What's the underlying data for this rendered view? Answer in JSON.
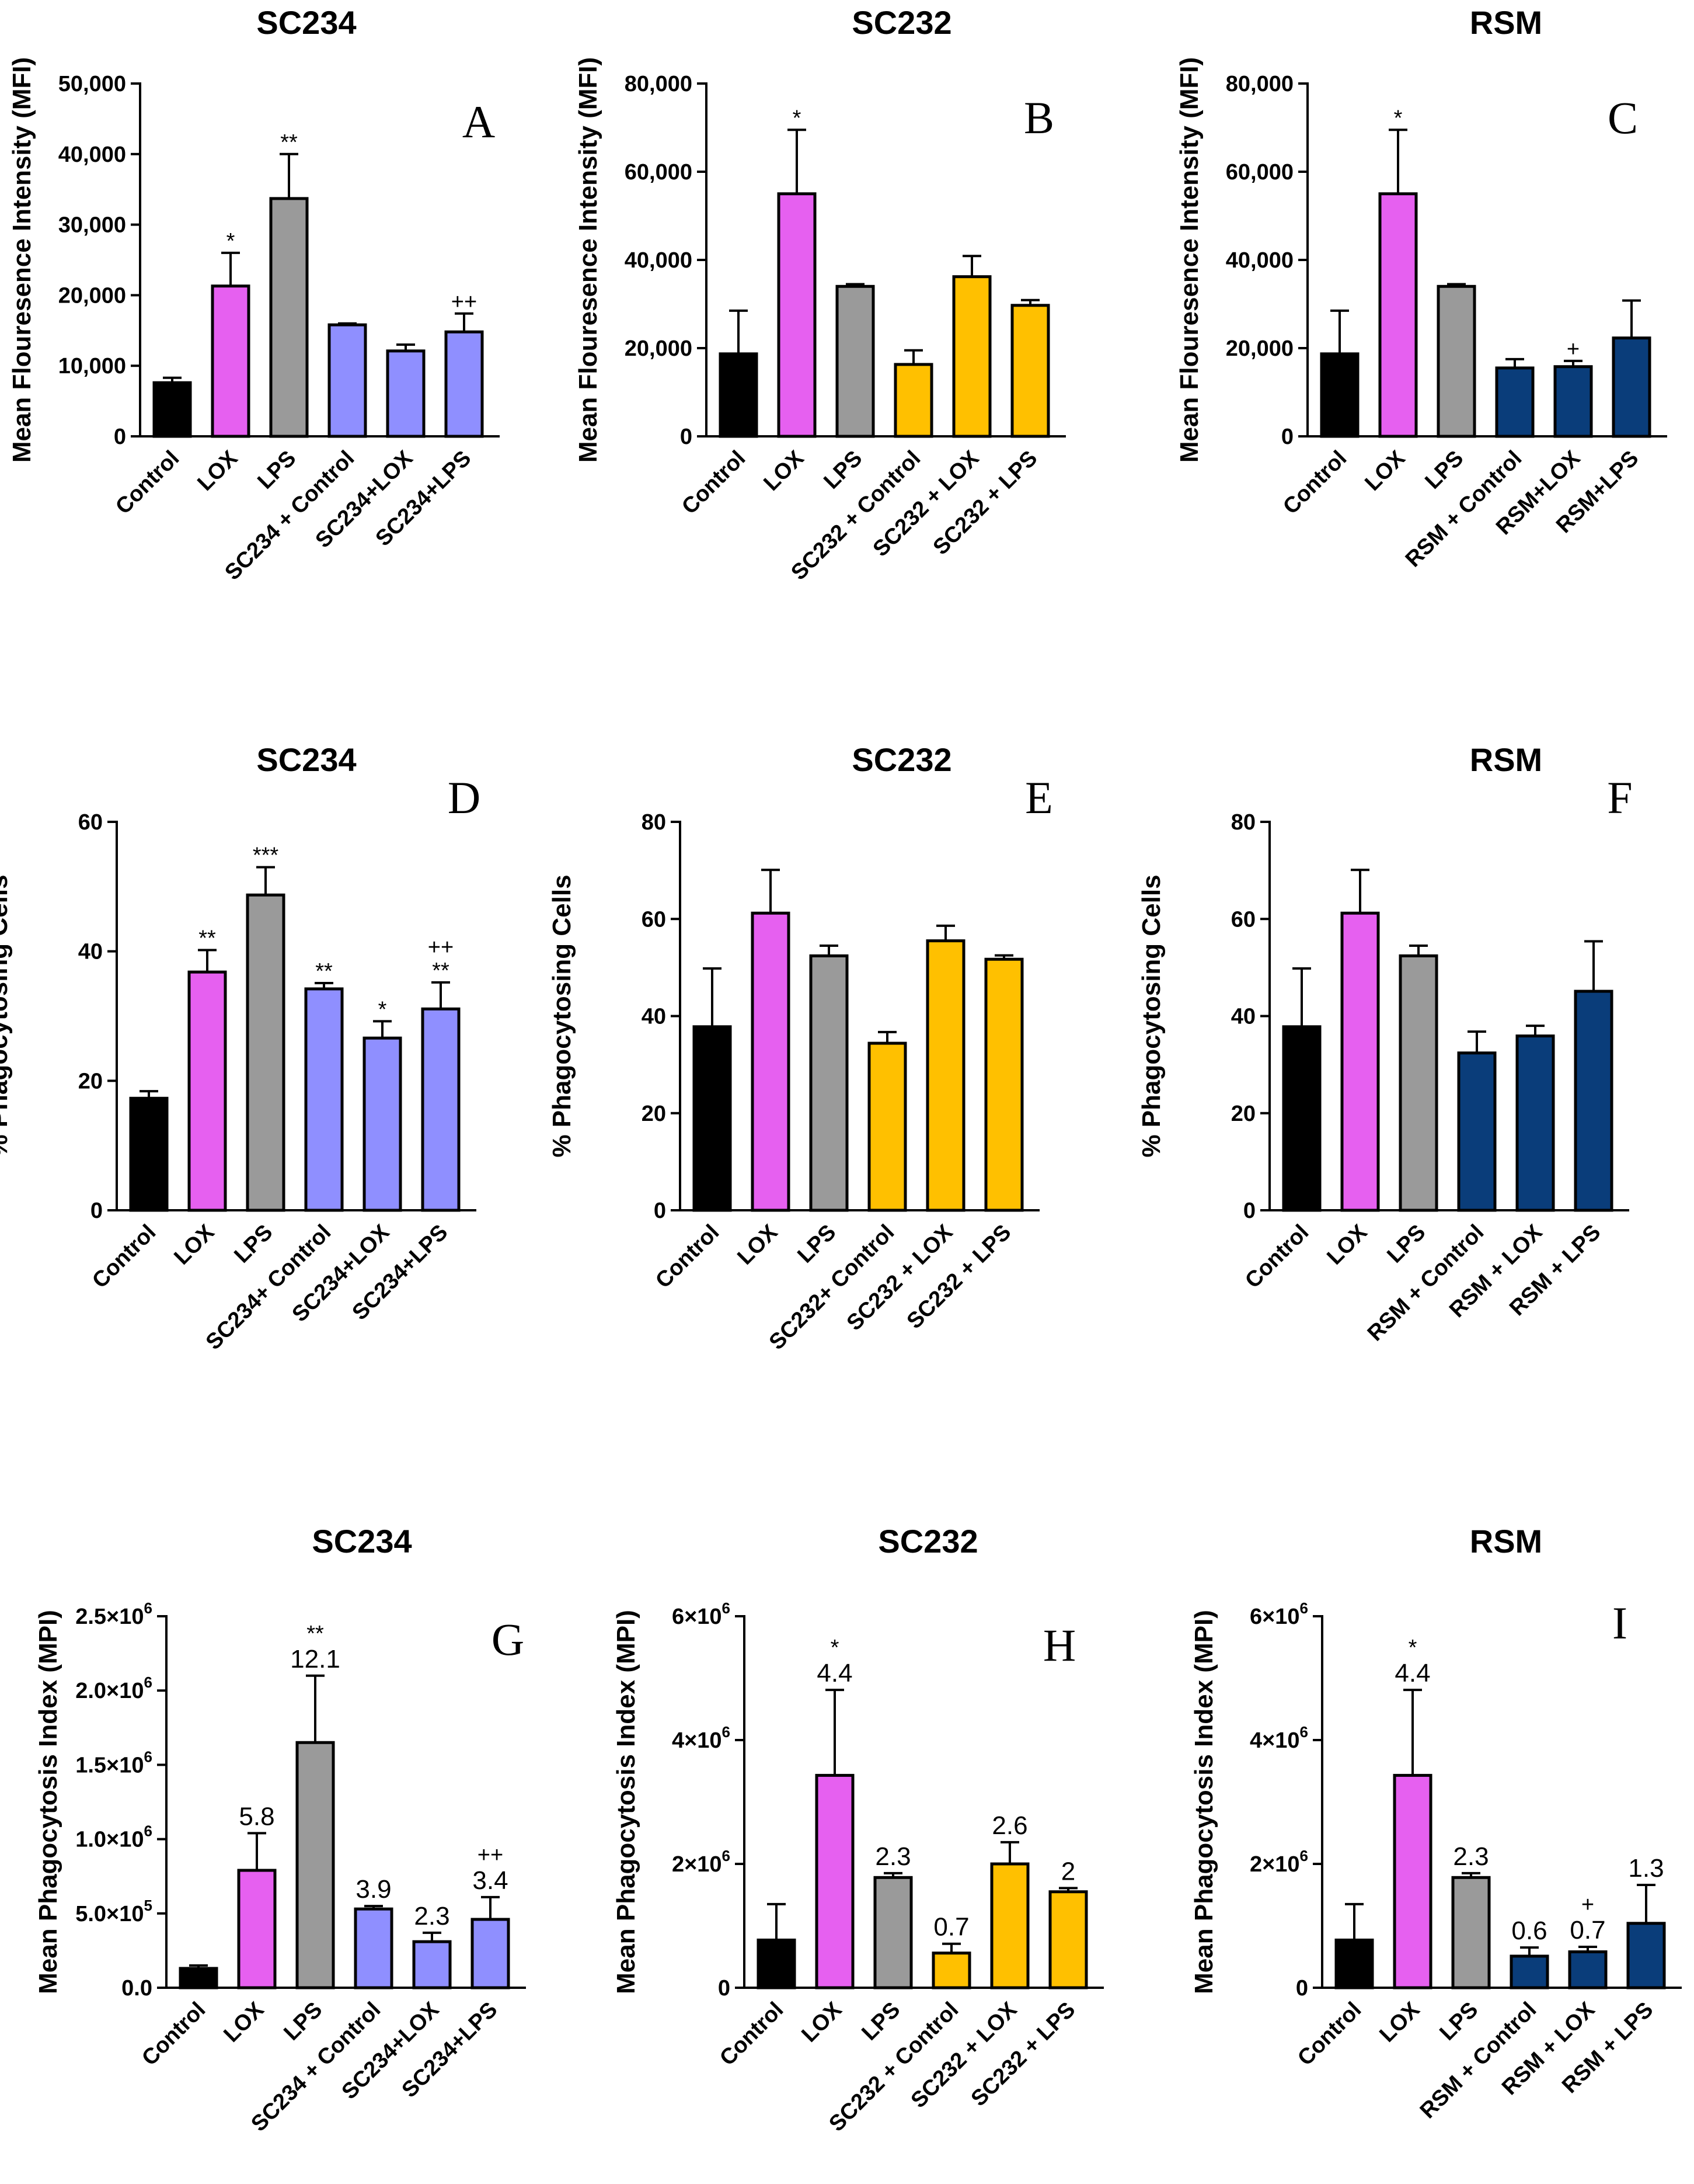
{
  "chart_data": [
    {
      "panel": "A",
      "type": "bar",
      "title": "SC234",
      "ylabel": "Mean Flouresence Intensity (MFI)",
      "ylim": [
        0,
        50000
      ],
      "yticks": [
        "0",
        "10,000",
        "20,000",
        "30,000",
        "40,000",
        "50,000"
      ],
      "categories": [
        "Control",
        "LOX",
        "LPS",
        "SC234 + Control",
        "SC234+LOX",
        "SC234+LPS"
      ],
      "values": [
        7600,
        21300,
        33700,
        15800,
        12100,
        14800
      ],
      "errors": [
        700,
        4700,
        6300,
        200,
        900,
        2600
      ],
      "colors": [
        "#000000",
        "#e660f0",
        "#9a9a9a",
        "#8f8fff",
        "#8f8fff",
        "#8f8fff"
      ],
      "annotations": [
        "",
        "*",
        "**",
        "",
        "",
        "++"
      ]
    },
    {
      "panel": "B",
      "type": "bar",
      "title": "SC232",
      "ylabel": "Mean Flouresence Intensity (MFI)",
      "ylim": [
        0,
        80000
      ],
      "yticks": [
        "0",
        "20,000",
        "40,000",
        "60,000",
        "80,000"
      ],
      "categories": [
        "Control",
        "LOX",
        "LPS",
        "SC232 + Control",
        "SC232 + LOX",
        "SC232 + LPS"
      ],
      "values": [
        18700,
        55000,
        34000,
        16300,
        36200,
        29700
      ],
      "errors": [
        9800,
        14500,
        500,
        3200,
        4700,
        1200
      ],
      "colors": [
        "#000000",
        "#e660f0",
        "#9a9a9a",
        "#ffc000",
        "#ffc000",
        "#ffc000"
      ],
      "annotations": [
        "",
        "*",
        "",
        "",
        "",
        ""
      ]
    },
    {
      "panel": "C",
      "type": "bar",
      "title": "RSM",
      "ylabel": "Mean Flouresence Intensity (MFI)",
      "ylim": [
        0,
        80000
      ],
      "yticks": [
        "0",
        "20,000",
        "40,000",
        "60,000",
        "80,000"
      ],
      "categories": [
        "Control",
        "LOX",
        "LPS",
        "RSM + Control",
        "RSM+LOX",
        "RSM+LPS"
      ],
      "values": [
        18700,
        55000,
        34000,
        15500,
        15800,
        22300
      ],
      "errors": [
        9800,
        14500,
        500,
        2000,
        1300,
        8500
      ],
      "colors": [
        "#000000",
        "#e660f0",
        "#9a9a9a",
        "#0a3d7a",
        "#0a3d7a",
        "#0a3d7a"
      ],
      "annotations": [
        "",
        "*",
        "",
        "",
        "+",
        ""
      ]
    },
    {
      "panel": "D",
      "type": "bar",
      "title": "SC234",
      "ylabel": "% Phagocytosing Cells",
      "ylim": [
        0,
        60
      ],
      "yticks": [
        "0",
        "20",
        "40",
        "60"
      ],
      "categories": [
        "Control",
        "LOX",
        "LPS",
        "SC234+ Control",
        "SC234+LOX",
        "SC234+LPS"
      ],
      "values": [
        17.3,
        36.8,
        48.7,
        34.2,
        26.6,
        31.1
      ],
      "errors": [
        1.1,
        3.4,
        4.3,
        0.9,
        2.6,
        4.1
      ],
      "colors": [
        "#000000",
        "#e660f0",
        "#9a9a9a",
        "#8f8fff",
        "#8f8fff",
        "#8f8fff"
      ],
      "annotations": [
        "",
        "**",
        "***",
        "**",
        "*",
        "**"
      ],
      "annotations2": [
        "",
        "",
        "",
        "",
        "",
        "++"
      ]
    },
    {
      "panel": "E",
      "type": "bar",
      "title": "SC232",
      "ylabel": "% Phagocytosing Cells",
      "ylim": [
        0,
        80
      ],
      "yticks": [
        "0",
        "20",
        "40",
        "60",
        "80"
      ],
      "categories": [
        "Control",
        "LOX",
        "LPS",
        "SC232+ Control",
        "SC232 + LOX",
        "SC232 + LPS"
      ],
      "values": [
        37.8,
        61.2,
        52.4,
        34.4,
        55.5,
        51.7
      ],
      "errors": [
        12.0,
        8.9,
        2.1,
        2.3,
        3.1,
        0.8
      ],
      "colors": [
        "#000000",
        "#e660f0",
        "#9a9a9a",
        "#ffc000",
        "#ffc000",
        "#ffc000"
      ],
      "annotations": [
        "",
        "",
        "",
        "",
        "",
        ""
      ]
    },
    {
      "panel": "F",
      "type": "bar",
      "title": "RSM",
      "ylabel": "% Phagocytosing Cells",
      "ylim": [
        0,
        80
      ],
      "yticks": [
        "0",
        "20",
        "40",
        "60",
        "80"
      ],
      "categories": [
        "Control",
        "LOX",
        "LPS",
        "RSM + Control",
        "RSM + LOX",
        "RSM + LPS"
      ],
      "values": [
        37.8,
        61.2,
        52.4,
        32.4,
        35.9,
        45.1
      ],
      "errors": [
        12.0,
        8.9,
        2.1,
        4.4,
        2.1,
        10.3
      ],
      "colors": [
        "#000000",
        "#e660f0",
        "#9a9a9a",
        "#0a3d7a",
        "#0a3d7a",
        "#0a3d7a"
      ],
      "annotations": [
        "",
        "",
        "",
        "",
        "",
        ""
      ]
    },
    {
      "panel": "G",
      "type": "bar",
      "title": "SC234",
      "ylabel": "Mean Phagocytosis Index (MPI)",
      "ylim": [
        0,
        2500000
      ],
      "yticks": [
        "0.0",
        "5.0×10",
        "1.0×10",
        "1.5×10",
        "2.0×10",
        "2.5×10"
      ],
      "ytick_exp": [
        "",
        "5",
        "6",
        "6",
        "6",
        "6"
      ],
      "categories": [
        "Control",
        "LOX",
        "LPS",
        "SC234 + Control",
        "SC234+LOX",
        "SC234+LPS"
      ],
      "values": [
        130000,
        790000,
        1650000,
        530000,
        310000,
        460000
      ],
      "errors": [
        20000,
        250000,
        450000,
        20000,
        60000,
        150000
      ],
      "colors": [
        "#000000",
        "#e660f0",
        "#9a9a9a",
        "#8f8fff",
        "#8f8fff",
        "#8f8fff"
      ],
      "annotations": [
        "",
        "",
        "**",
        "",
        "",
        "++"
      ],
      "value_labels": [
        "",
        "5.8",
        "12.1",
        "3.9",
        "2.3",
        "3.4"
      ]
    },
    {
      "panel": "H",
      "type": "bar",
      "title": "SC232",
      "ylabel": "Mean Phagocytosis Index (MPI)",
      "ylim": [
        0,
        6000000
      ],
      "yticks": [
        "0",
        "2×10",
        "4×10",
        "6×10"
      ],
      "ytick_exp": [
        "",
        "6",
        "6",
        "6"
      ],
      "categories": [
        "Control",
        "LOX",
        "LPS",
        "SC232 + Control",
        "SC232 + LOX",
        "SC232 + LPS"
      ],
      "values": [
        770000,
        3430000,
        1780000,
        560000,
        2000000,
        1550000
      ],
      "errors": [
        580000,
        1380000,
        70000,
        150000,
        350000,
        60000
      ],
      "colors": [
        "#000000",
        "#e660f0",
        "#9a9a9a",
        "#ffc000",
        "#ffc000",
        "#ffc000"
      ],
      "annotations": [
        "",
        "*",
        "",
        "",
        "",
        ""
      ],
      "value_labels": [
        "",
        "4.4",
        "2.3",
        "0.7",
        "2.6",
        "2"
      ]
    },
    {
      "panel": "I",
      "type": "bar",
      "title": "RSM",
      "ylabel": "Mean Phagocytosis Index (MPI)",
      "ylim": [
        0,
        6000000
      ],
      "yticks": [
        "0",
        "2×10",
        "4×10",
        "6×10"
      ],
      "ytick_exp": [
        "",
        "6",
        "6",
        "6"
      ],
      "categories": [
        "Control",
        "LOX",
        "LPS",
        "RSM + Control",
        "RSM + LOX",
        "RSM + LPS"
      ],
      "values": [
        770000,
        3430000,
        1780000,
        510000,
        580000,
        1040000
      ],
      "errors": [
        580000,
        1380000,
        70000,
        140000,
        80000,
        620000
      ],
      "colors": [
        "#000000",
        "#e660f0",
        "#9a9a9a",
        "#0a3d7a",
        "#0a3d7a",
        "#0a3d7a"
      ],
      "annotations": [
        "",
        "*",
        "",
        "",
        "+",
        ""
      ],
      "value_labels": [
        "",
        "4.4",
        "2.3",
        "0.6",
        "0.7",
        "1.3"
      ]
    }
  ]
}
